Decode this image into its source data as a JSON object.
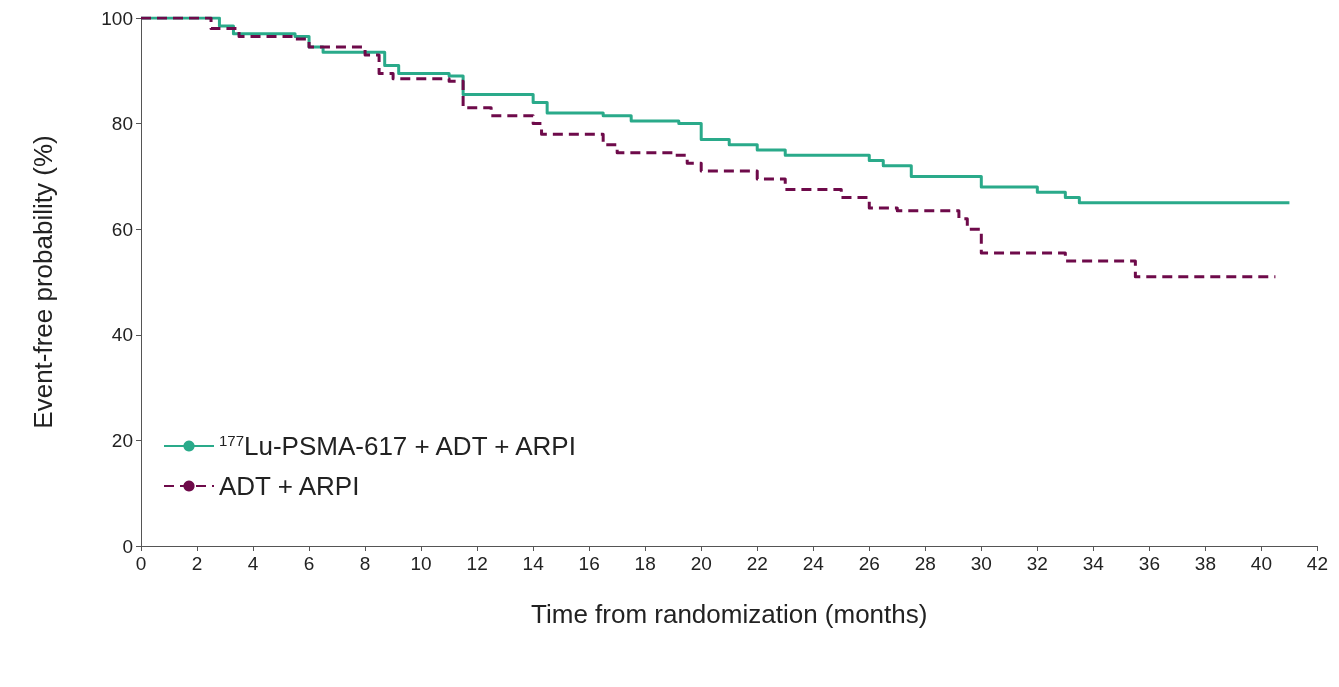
{
  "chart_data": {
    "type": "step",
    "xlabel": "Time from randomization (months)",
    "ylabel": "Event-free probability (%)",
    "xlim": [
      0,
      42
    ],
    "xticks": [
      0,
      2,
      4,
      6,
      8,
      10,
      12,
      14,
      16,
      18,
      20,
      22,
      24,
      26,
      28,
      30,
      32,
      34,
      36,
      38,
      40,
      42
    ],
    "ylim": [
      0,
      100
    ],
    "yticks": [
      0,
      20,
      40,
      60,
      80,
      100
    ],
    "grid": false,
    "legend": "bottom left",
    "series": [
      {
        "name": "$^{177}$Lu-PSMA-617 + ADT + ARPI",
        "color": "#2aaa8a",
        "line_style": "solid",
        "x": [
          0,
          2,
          2.8,
          3.3,
          5.5,
          6,
          6.5,
          8,
          8.7,
          9.2,
          11,
          11.5,
          14,
          14.5,
          16.5,
          17.5,
          19.2,
          20,
          21,
          22,
          23,
          26,
          26.5,
          27.5,
          29.7,
          30,
          32,
          33,
          33.5,
          41
        ],
        "values": [
          100,
          100,
          98.5,
          97,
          96.5,
          94.5,
          93.5,
          93.5,
          91,
          89.5,
          89,
          85.5,
          84,
          82,
          81.5,
          80.5,
          80,
          77,
          76,
          75,
          74,
          73,
          72,
          70,
          70,
          68,
          67,
          66,
          65,
          65
        ]
      },
      {
        "name": "ADT + ARPI",
        "color": "#6e0a4a",
        "line_style": "dashed",
        "x": [
          0,
          1.5,
          2.5,
          3.5,
          5.5,
          6,
          8,
          8.5,
          9,
          11,
          11.5,
          12.5,
          14,
          14.3,
          16.5,
          17,
          19,
          19.5,
          20,
          22,
          23,
          25,
          26,
          27,
          29.2,
          29.5,
          30,
          33,
          35,
          35.5,
          40.5
        ],
        "values": [
          100,
          100,
          98,
          96.5,
          96,
          94.5,
          93,
          89.5,
          88.5,
          88,
          83,
          81.5,
          80,
          78,
          76,
          74.5,
          74,
          72.5,
          71,
          69.5,
          67.5,
          66,
          64,
          63.5,
          62,
          60,
          55.5,
          54,
          54,
          51,
          51
        ]
      }
    ]
  }
}
